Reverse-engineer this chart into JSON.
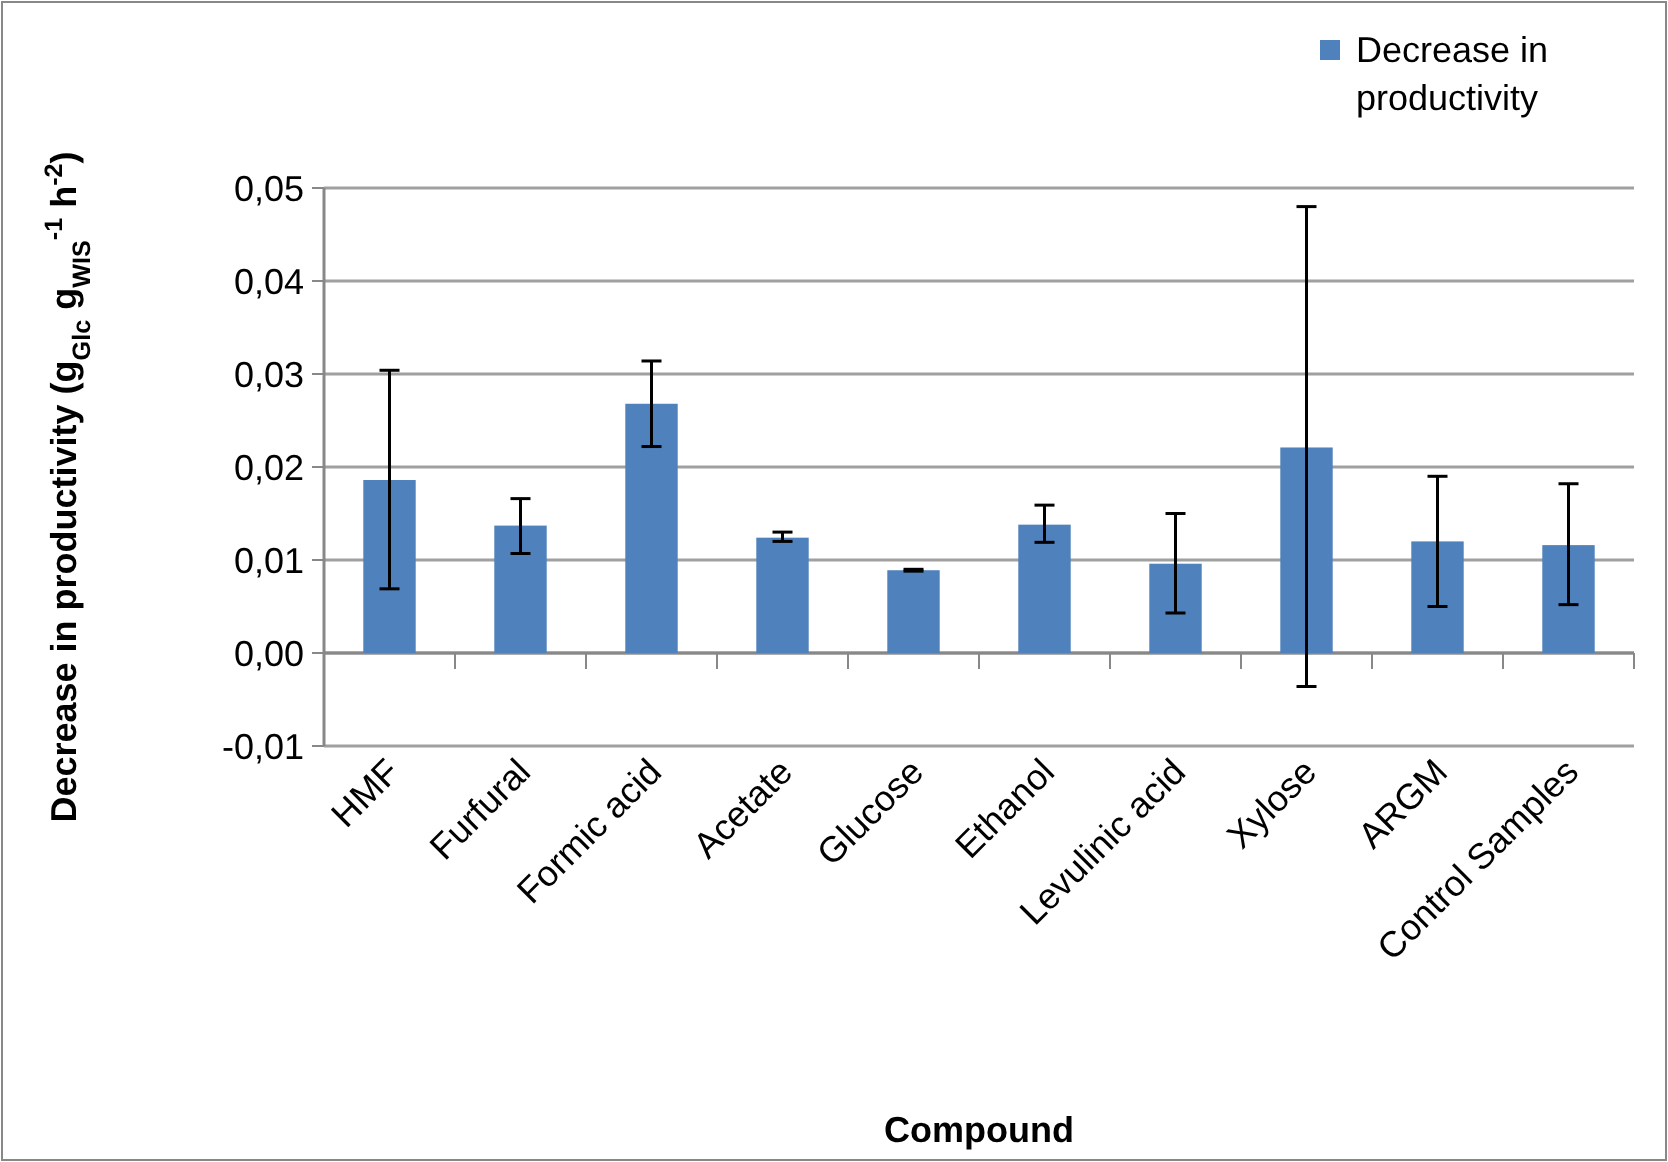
{
  "chart_data": {
    "type": "bar",
    "xlabel": "Compound",
    "ylabel": "Decrease in productivity (g$_{Glc}$ g$_{WIS}$$^{-1}$ h$^{-2}$)",
    "categories": [
      "HMF",
      "Furfural",
      "Formic acid",
      "Acetate",
      "Glucose",
      "Ethanol",
      "Levulinic acid",
      "Xylose",
      "ARGM",
      "Control Samples"
    ],
    "series": [
      {
        "name": "Decrease in productivity",
        "color": "#4f81bd",
        "values": [
          0.0186,
          0.0137,
          0.0268,
          0.0124,
          0.0089,
          0.0138,
          0.0096,
          0.0221,
          0.012,
          0.0116
        ],
        "errors": [
          [
            0.0069,
            0.0304
          ],
          [
            0.0107,
            0.0166
          ],
          [
            0.0222,
            0.0314
          ],
          [
            0.012,
            0.013
          ],
          [
            0.0088,
            0.009
          ],
          [
            0.0119,
            0.0159
          ],
          [
            0.0043,
            0.015
          ],
          [
            -0.0036,
            0.048
          ],
          [
            0.005,
            0.019
          ],
          [
            0.0052,
            0.0182
          ]
        ]
      }
    ],
    "ylim": [
      -0.01,
      0.05
    ],
    "yticks": [
      {
        "value": -0.01,
        "label": "-0,01"
      },
      {
        "value": 0,
        "label": "0,00"
      },
      {
        "value": 0.01,
        "label": "0,01"
      },
      {
        "value": 0.02,
        "label": "0,02"
      },
      {
        "value": 0.03,
        "label": "0,03"
      },
      {
        "value": 0.04,
        "label": "0,04"
      },
      {
        "value": 0.05,
        "label": "0,05"
      }
    ],
    "grid": "y",
    "legend": "top right"
  }
}
